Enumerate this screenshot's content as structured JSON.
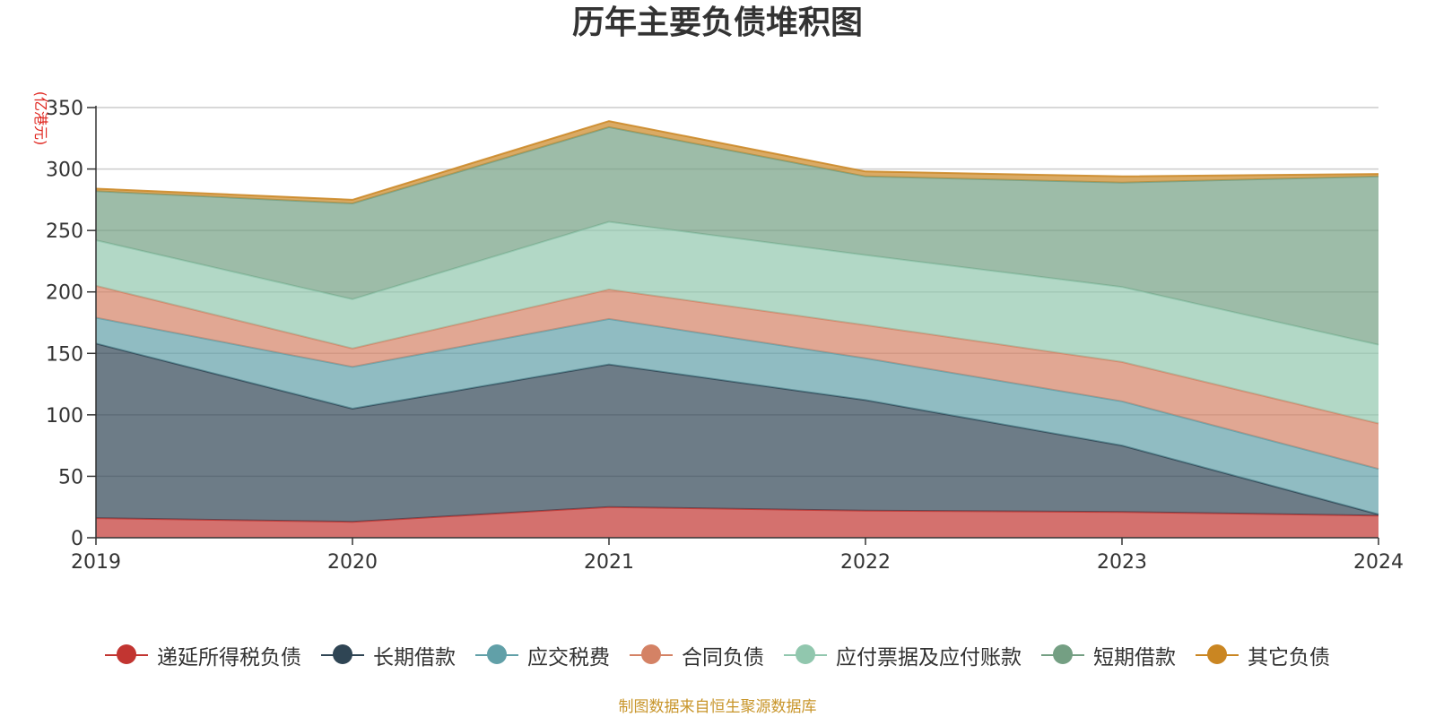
{
  "chart_data": {
    "type": "area",
    "stacked": true,
    "title": "历年主要负债堆积图",
    "unit_label": "(亿港元)",
    "x": [
      "2019",
      "2020",
      "2021",
      "2022",
      "2023",
      "2024"
    ],
    "ylim": [
      0,
      350
    ],
    "yticks": [
      0,
      50,
      100,
      150,
      200,
      250,
      300,
      350
    ],
    "grid": true,
    "legend_position": "bottom",
    "series": [
      {
        "name": "递延所得税负债",
        "color": "#c23531",
        "values": [
          16,
          13,
          25,
          22,
          21,
          18
        ]
      },
      {
        "name": "长期借款",
        "color": "#2f4554",
        "values": [
          142,
          92,
          116,
          90,
          54,
          1
        ]
      },
      {
        "name": "应交税费",
        "color": "#61a0a8",
        "values": [
          21,
          34,
          37,
          34,
          36,
          37
        ]
      },
      {
        "name": "合同负债",
        "color": "#d48265",
        "values": [
          26,
          15,
          24,
          27,
          32,
          37
        ]
      },
      {
        "name": "应付票据及应付账款",
        "color": "#91c7ae",
        "values": [
          37,
          40,
          55,
          57,
          61,
          64
        ]
      },
      {
        "name": "短期借款",
        "color": "#749f83",
        "values": [
          40,
          78,
          77,
          64,
          85,
          137
        ]
      },
      {
        "name": "其它负债",
        "color": "#ca8622",
        "values": [
          2,
          3,
          5,
          4,
          5,
          2
        ]
      }
    ]
  },
  "source_note": "制图数据来自恒生聚源数据库"
}
